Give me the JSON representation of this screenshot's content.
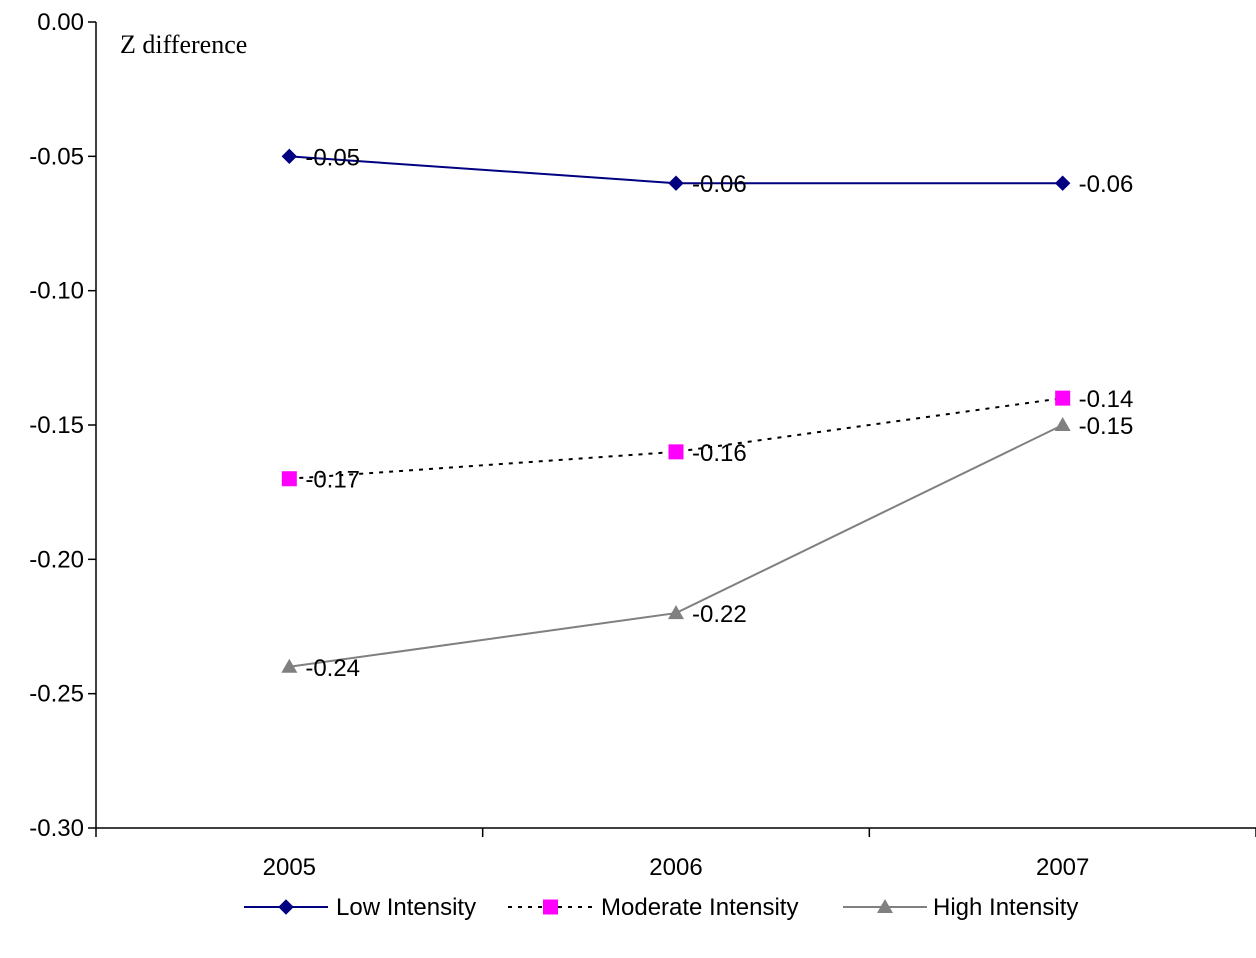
{
  "chart_data": {
    "type": "line",
    "title": "",
    "xlabel": "",
    "ylabel": "Z difference",
    "categories": [
      "2005",
      "2006",
      "2007"
    ],
    "ylim": [
      -0.3,
      0.0
    ],
    "yticks": [
      "0.00",
      "-0.05",
      "-0.10",
      "-0.15",
      "-0.20",
      "-0.25",
      "-0.30"
    ],
    "ytick_values": [
      0.0,
      -0.05,
      -0.1,
      -0.15,
      -0.2,
      -0.25,
      -0.3
    ],
    "grid": false,
    "legend_position": "bottom",
    "series": [
      {
        "name": "Low Intensity",
        "values": [
          -0.05,
          -0.06,
          -0.06
        ],
        "labels": [
          "-0.05",
          "-0.06",
          "-0.06"
        ],
        "color": "#000080",
        "marker": "diamond",
        "line_style": "solid"
      },
      {
        "name": "Moderate Intensity",
        "values": [
          -0.17,
          -0.16,
          -0.14
        ],
        "labels": [
          "-0.17",
          "-0.16",
          "-0.14"
        ],
        "color": "#ff00ff",
        "line_color": "#000000",
        "marker": "square",
        "line_style": "dotted"
      },
      {
        "name": "High Intensity",
        "values": [
          -0.24,
          -0.22,
          -0.15
        ],
        "labels": [
          "-0.24",
          "-0.22",
          "-0.15"
        ],
        "color": "#808080",
        "marker": "triangle",
        "line_style": "solid"
      }
    ]
  }
}
